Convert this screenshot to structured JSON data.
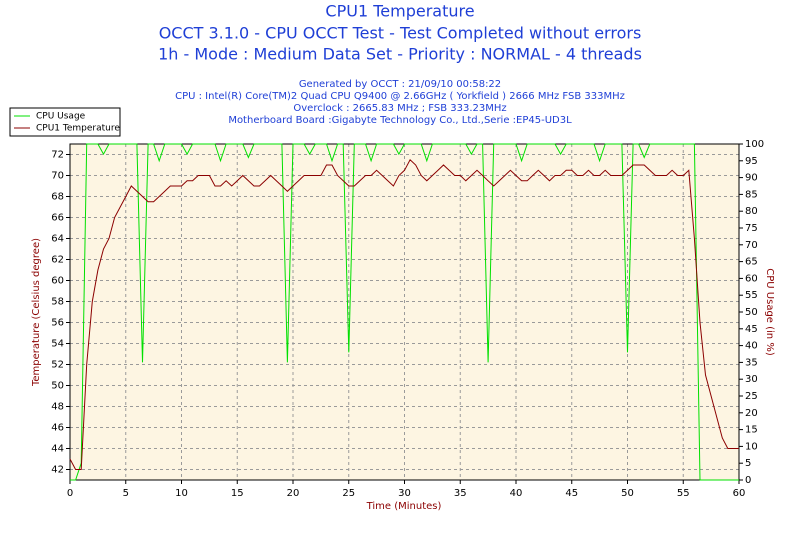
{
  "chart_data": {
    "type": "line",
    "title": "CPU1 Temperature",
    "subtitle": [
      "OCCT 3.1.0 - CPU OCCT Test - Test Completed without errors",
      "1h - Mode : Medium Data Set - Priority : NORMAL - 4 threads"
    ],
    "annotations": [
      "Generated by OCCT : 21/09/10 00:58:22",
      "CPU : Intel(R) Core(TM)2 Quad CPU Q9400 @ 2.66GHz ( Yorkfield ) 2666 MHz FSB 333MHz",
      "Overclock : 2665.83 MHz ; FSB 333.23MHz",
      "Motherboard Board :Gigabyte Technology Co., Ltd.,Serie :EP45-UD3L"
    ],
    "x_label": "Time (Minutes)",
    "y_label": "Temperature (Celsius degree)",
    "y2_label": "CPU Usage (in %)",
    "x": [
      0,
      0.5,
      1,
      1.5,
      2,
      2.5,
      3,
      3.5,
      4,
      4.5,
      5,
      5.5,
      6,
      6.5,
      7,
      7.5,
      8,
      8.5,
      9,
      9.5,
      10,
      10.5,
      11,
      11.5,
      12,
      12.5,
      13,
      13.5,
      14,
      14.5,
      15,
      15.5,
      16,
      16.5,
      17,
      17.5,
      18,
      18.5,
      19,
      19.5,
      20,
      20.5,
      21,
      21.5,
      22,
      22.5,
      23,
      23.5,
      24,
      24.5,
      25,
      25.5,
      26,
      26.5,
      27,
      27.5,
      28,
      28.5,
      29,
      29.5,
      30,
      30.5,
      31,
      31.5,
      32,
      32.5,
      33,
      33.5,
      34,
      34.5,
      35,
      35.5,
      36,
      36.5,
      37,
      37.5,
      38,
      38.5,
      39,
      39.5,
      40,
      40.5,
      41,
      41.5,
      42,
      42.5,
      43,
      43.5,
      44,
      44.5,
      45,
      45.5,
      46,
      46.5,
      47,
      47.5,
      48,
      48.5,
      49,
      49.5,
      50,
      50.5,
      51,
      51.5,
      52,
      52.5,
      53,
      53.5,
      54,
      54.5,
      55,
      55.5,
      56,
      56.5,
      57,
      57.5,
      58,
      58.5,
      59,
      59.5,
      60
    ],
    "series": [
      {
        "name": "CPU Usage",
        "color": "#00e000",
        "axis": "y2",
        "values": [
          0,
          0,
          5,
          100,
          100,
          100,
          97,
          100,
          100,
          100,
          100,
          100,
          100,
          35,
          100,
          100,
          95,
          100,
          100,
          100,
          100,
          97,
          100,
          100,
          100,
          100,
          100,
          95,
          100,
          100,
          100,
          100,
          96,
          100,
          100,
          100,
          100,
          100,
          100,
          35,
          100,
          100,
          100,
          97,
          100,
          100,
          100,
          95,
          100,
          100,
          38,
          100,
          100,
          100,
          95,
          100,
          100,
          100,
          100,
          97,
          100,
          100,
          100,
          100,
          95,
          100,
          100,
          100,
          100,
          100,
          100,
          100,
          97,
          100,
          100,
          35,
          100,
          100,
          100,
          100,
          100,
          95,
          100,
          100,
          100,
          100,
          100,
          100,
          97,
          100,
          100,
          100,
          100,
          100,
          100,
          95,
          100,
          100,
          100,
          100,
          38,
          100,
          100,
          96,
          100,
          100,
          100,
          100,
          100,
          100,
          100,
          100,
          100,
          0,
          0,
          0,
          0,
          0,
          0,
          0,
          0
        ]
      },
      {
        "name": "CPU1 Temperature",
        "color": "#8b0000",
        "values": [
          43,
          42,
          42,
          52,
          58,
          61,
          63,
          64,
          66,
          67,
          68,
          69,
          68.5,
          68,
          67.5,
          67.5,
          68,
          68.5,
          69,
          69,
          69,
          69.5,
          69.5,
          70,
          70,
          70,
          69,
          69,
          69.5,
          69,
          69.5,
          70,
          69.5,
          69,
          69,
          69.5,
          70,
          69.5,
          69,
          68.5,
          69,
          69.5,
          70,
          70,
          70,
          70,
          71,
          71,
          70,
          69.5,
          69,
          69,
          69.5,
          70,
          70,
          70.5,
          70,
          69.5,
          69,
          70,
          70.5,
          71.5,
          71,
          70,
          69.5,
          70,
          70.5,
          71,
          70.5,
          70,
          70,
          69.5,
          70,
          70.5,
          70,
          69.5,
          69,
          69.5,
          70,
          70.5,
          70,
          69.5,
          69.5,
          70,
          70.5,
          70,
          69.5,
          70,
          70,
          70.5,
          70.5,
          70,
          70,
          70.5,
          70,
          70,
          70.5,
          70,
          70,
          70,
          70.5,
          71,
          71,
          71,
          70.5,
          70,
          70,
          70,
          70.5,
          70,
          70,
          70.5,
          64,
          56,
          51,
          49,
          47,
          45,
          44,
          44,
          44
        ]
      }
    ],
    "xlim": [
      0,
      60
    ],
    "xticks": [
      0,
      5,
      10,
      15,
      20,
      25,
      30,
      35,
      40,
      45,
      50,
      55,
      60
    ],
    "ylim": [
      41,
      73
    ],
    "yticks": [
      42,
      44,
      46,
      48,
      50,
      52,
      54,
      56,
      58,
      60,
      62,
      64,
      66,
      68,
      70,
      72
    ],
    "y2lim": [
      0,
      100
    ],
    "y2ticks": [
      0,
      5,
      10,
      15,
      20,
      25,
      30,
      35,
      40,
      45,
      50,
      55,
      60,
      65,
      70,
      75,
      80,
      85,
      90,
      95,
      100
    ],
    "grid": true,
    "legend": "upper-left"
  }
}
